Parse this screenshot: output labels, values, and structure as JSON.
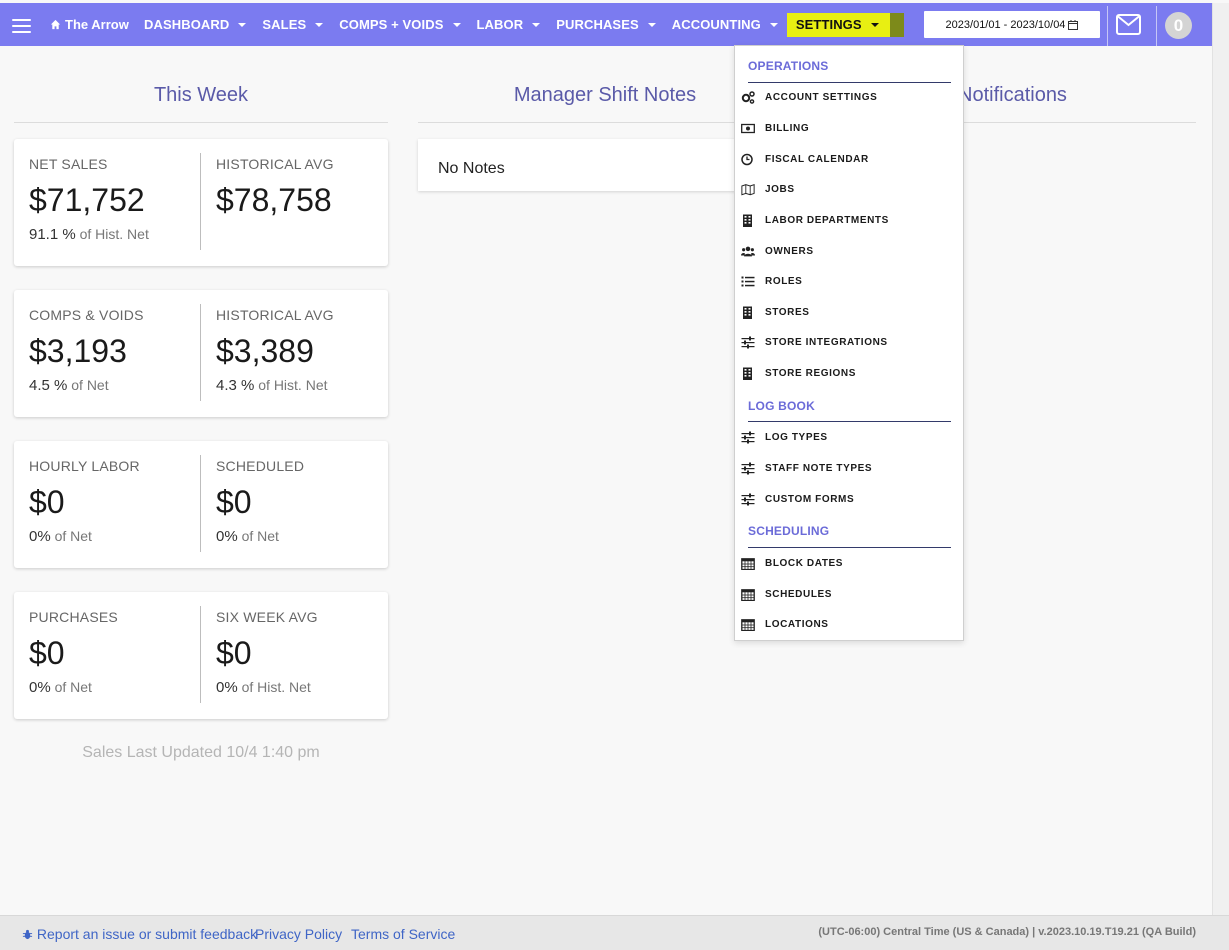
{
  "nav": {
    "brand": "The Arrow",
    "items": [
      {
        "label": "DASHBOARD"
      },
      {
        "label": "SALES"
      },
      {
        "label": "COMPS + VOIDS"
      },
      {
        "label": "LABOR"
      },
      {
        "label": "PURCHASES"
      },
      {
        "label": "ACCOUNTING"
      },
      {
        "label": "SETTINGS"
      }
    ],
    "date_range": "2023/01/01 - 2023/10/04",
    "notification_count": "0",
    "accent": "#7b7bf0",
    "highlight": "#e8ef12"
  },
  "columns": {
    "this_week": "This Week",
    "shift_notes": "Manager Shift Notes",
    "notifications": "Notifications"
  },
  "cards": [
    {
      "left": {
        "label": "NET SALES",
        "value": "$71,752",
        "pct": "91.1 %",
        "note": "of Hist. Net"
      },
      "right": {
        "label": "HISTORICAL AVG",
        "value": "$78,758",
        "pct": "",
        "note": ""
      }
    },
    {
      "left": {
        "label": "COMPS & VOIDS",
        "value": "$3,193",
        "pct": "4.5 %",
        "note": "of Net"
      },
      "right": {
        "label": "HISTORICAL AVG",
        "value": "$3,389",
        "pct": "4.3 %",
        "note": "of Hist. Net"
      }
    },
    {
      "left": {
        "label": "HOURLY LABOR",
        "value": "$0",
        "pct": "0%",
        "note": "of Net"
      },
      "right": {
        "label": "SCHEDULED",
        "value": "$0",
        "pct": "0%",
        "note": "of Net"
      }
    },
    {
      "left": {
        "label": "PURCHASES",
        "value": "$0",
        "pct": "0%",
        "note": "of Net"
      },
      "right": {
        "label": "SIX WEEK AVG",
        "value": "$0",
        "pct": "0%",
        "note": "of Hist. Net"
      }
    }
  ],
  "sales_updated": "Sales Last Updated 10/4 1:40 pm",
  "notes_empty": "No Notes",
  "settings_menu": {
    "operations": {
      "heading": "OPERATIONS",
      "items": [
        {
          "label": "ACCOUNT SETTINGS",
          "icon": "gears-icon"
        },
        {
          "label": "BILLING",
          "icon": "money-bill-icon"
        },
        {
          "label": "FISCAL CALENDAR",
          "icon": "clock-icon"
        },
        {
          "label": "JOBS",
          "icon": "map-icon"
        },
        {
          "label": "LABOR DEPARTMENTS",
          "icon": "building-icon"
        },
        {
          "label": "OWNERS",
          "icon": "users-icon"
        },
        {
          "label": "ROLES",
          "icon": "list-icon"
        },
        {
          "label": "STORES",
          "icon": "building-icon"
        },
        {
          "label": "STORE INTEGRATIONS",
          "icon": "sliders-icon"
        },
        {
          "label": "STORE REGIONS",
          "icon": "building-icon"
        }
      ]
    },
    "log_book": {
      "heading": "LOG BOOK",
      "items": [
        {
          "label": "LOG TYPES",
          "icon": "sliders-icon"
        },
        {
          "label": "STAFF NOTE TYPES",
          "icon": "sliders-icon"
        },
        {
          "label": "CUSTOM FORMS",
          "icon": "sliders-icon"
        }
      ]
    },
    "scheduling": {
      "heading": "SCHEDULING",
      "items": [
        {
          "label": "BLOCK DATES",
          "icon": "calendar-icon"
        },
        {
          "label": "SCHEDULES",
          "icon": "calendar-icon"
        },
        {
          "label": "LOCATIONS",
          "icon": "calendar-icon"
        }
      ]
    }
  },
  "footer": {
    "report": "Report an issue or submit feedback",
    "privacy": "Privacy Policy",
    "terms": "Terms of Service",
    "build": "(UTC-06:00) Central Time (US & Canada) | v.2023.10.19.T19.21 (QA Build)"
  }
}
